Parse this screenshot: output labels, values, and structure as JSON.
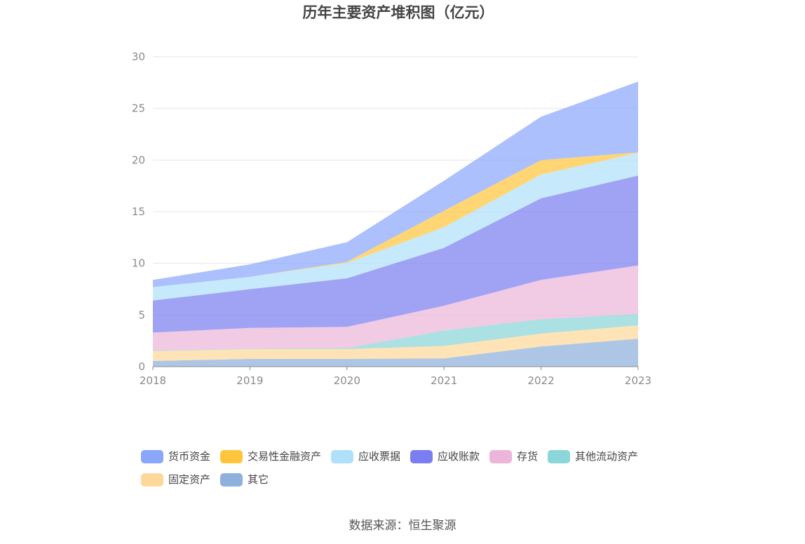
{
  "chart_data": {
    "type": "area",
    "stacked": true,
    "title": "历年主要资产堆积图（亿元）",
    "x": [
      "2018",
      "2019",
      "2020",
      "2021",
      "2022",
      "2023"
    ],
    "yticks": [
      "0",
      "5",
      "10",
      "15",
      "20",
      "25",
      "30"
    ],
    "ylim": [
      0,
      30
    ],
    "grid": true,
    "legend_position": "bottom",
    "series": [
      {
        "name": "其它",
        "color": "#8fb0dc",
        "values": [
          0.55,
          0.75,
          0.75,
          0.8,
          1.95,
          2.7
        ]
      },
      {
        "name": "固定资产",
        "color": "#fdd89a",
        "values": [
          0.95,
          0.95,
          0.95,
          1.2,
          1.25,
          1.3
        ]
      },
      {
        "name": "其他流动资产",
        "color": "#8ad6d8",
        "values": [
          0.05,
          0.05,
          0.1,
          1.5,
          1.4,
          1.1
        ]
      },
      {
        "name": "存货",
        "color": "#ebb6d9",
        "values": [
          1.75,
          2.0,
          2.05,
          2.4,
          3.8,
          4.7
        ]
      },
      {
        "name": "应收账款",
        "color": "#7b7ef0",
        "values": [
          3.1,
          3.75,
          4.7,
          5.6,
          7.9,
          8.7
        ]
      },
      {
        "name": "应收票据",
        "color": "#b0e0fa",
        "values": [
          1.3,
          1.2,
          1.5,
          2.0,
          2.3,
          2.2
        ]
      },
      {
        "name": "交易性金融资产",
        "color": "#ffc63d",
        "values": [
          0.0,
          0.0,
          0.1,
          1.6,
          1.4,
          0.05
        ]
      },
      {
        "name": "货币资金",
        "color": "#8aa7fb",
        "values": [
          0.7,
          1.2,
          1.9,
          2.9,
          4.2,
          6.85
        ]
      }
    ],
    "legend_order": [
      "货币资金",
      "交易性金融资产",
      "应收票据",
      "应收账款",
      "存货",
      "其他流动资产",
      "固定资产",
      "其它"
    ]
  },
  "source": "数据来源：恒生聚源"
}
